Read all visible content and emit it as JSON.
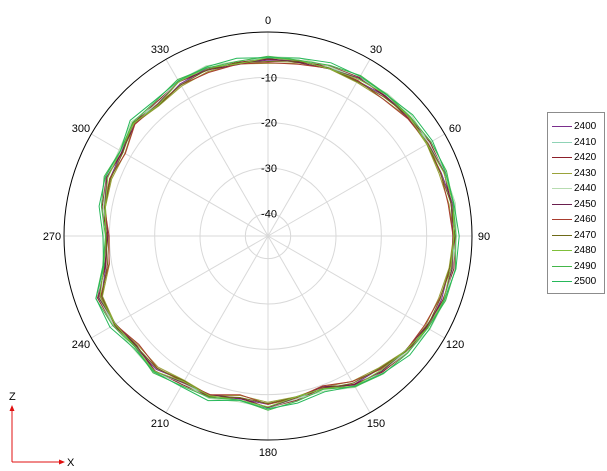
{
  "chart_data": {
    "type": "polar-line",
    "r_ticks": [
      "-40",
      "-30",
      "-20",
      "-10"
    ],
    "r_range": [
      -45,
      0
    ],
    "angle_labels": [
      {
        "deg": 0,
        "text": "0"
      },
      {
        "deg": 30,
        "text": "30"
      },
      {
        "deg": 60,
        "text": "60"
      },
      {
        "deg": 90,
        "text": "90"
      },
      {
        "deg": 120,
        "text": "120"
      },
      {
        "deg": 150,
        "text": "150"
      },
      {
        "deg": 180,
        "text": "180"
      },
      {
        "deg": 210,
        "text": "210"
      },
      {
        "deg": 240,
        "text": "240"
      },
      {
        "deg": 270,
        "text": "270"
      },
      {
        "deg": 300,
        "text": "300"
      },
      {
        "deg": 330,
        "text": "330"
      }
    ],
    "angles": [
      0,
      10,
      20,
      30,
      40,
      50,
      60,
      70,
      80,
      90,
      100,
      110,
      120,
      130,
      140,
      150,
      160,
      170,
      180,
      190,
      200,
      210,
      220,
      230,
      240,
      250,
      260,
      270,
      280,
      290,
      300,
      310,
      320,
      330,
      340,
      350
    ],
    "base_values": [
      -6.2,
      -6.0,
      -5.6,
      -5.2,
      -4.9,
      -4.4,
      -4.3,
      -4.1,
      -4.0,
      -4.0,
      -4.0,
      -4.2,
      -4.7,
      -5.4,
      -6.4,
      -7.3,
      -9.4,
      -8.8,
      -7.6,
      -8.8,
      -7.5,
      -7.8,
      -6.5,
      -7.2,
      -6.0,
      -5.6,
      -8.8,
      -9.5,
      -8.4,
      -7.6,
      -8.0,
      -6.4,
      -7.2,
      -6.1,
      -6.0,
      -6.4
    ],
    "series": [
      {
        "name": "2400",
        "color": "#7a2e8c",
        "offset": 0.0
      },
      {
        "name": "2410",
        "color": "#8fd3b6",
        "offset": 0.4
      },
      {
        "name": "2420",
        "color": "#8c1f2a",
        "offset": 0.3
      },
      {
        "name": "2430",
        "color": "#9aa33a",
        "offset": -0.4
      },
      {
        "name": "2440",
        "color": "#b7dcb0",
        "offset": 0.6
      },
      {
        "name": "2450",
        "color": "#6a1f4e",
        "offset": 0.1
      },
      {
        "name": "2460",
        "color": "#a83c2e",
        "offset": -0.3
      },
      {
        "name": "2470",
        "color": "#6e6a18",
        "offset": -0.1
      },
      {
        "name": "2480",
        "color": "#7fbf3a",
        "offset": 0.2
      },
      {
        "name": "2490",
        "color": "#44b64a",
        "offset": 0.7
      },
      {
        "name": "2500",
        "color": "#26b85a",
        "offset": 0.9
      }
    ],
    "legend_position": "right",
    "grid": true
  },
  "axes_icon": {
    "vertical": "Z",
    "horizontal": "X"
  }
}
